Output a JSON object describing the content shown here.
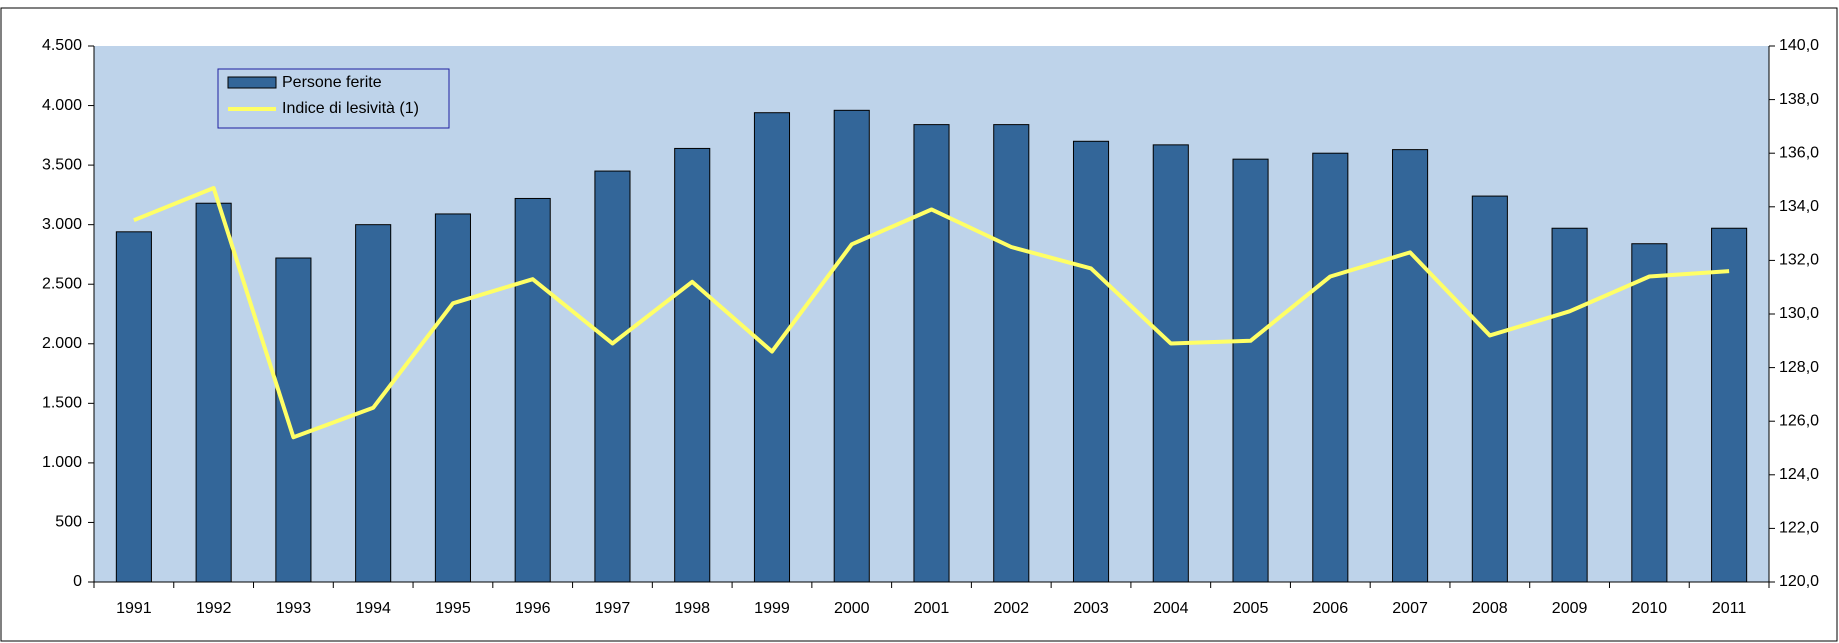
{
  "chart_data": {
    "type": "bar_line",
    "categories": [
      "1991",
      "1992",
      "1993",
      "1994",
      "1995",
      "1996",
      "1997",
      "1998",
      "1999",
      "2000",
      "2001",
      "2002",
      "2003",
      "2004",
      "2005",
      "2006",
      "2007",
      "2008",
      "2009",
      "2010",
      "2011"
    ],
    "series": [
      {
        "name": "Persone ferite",
        "type": "bar",
        "color": "#336699",
        "values": [
          2940,
          3180,
          2720,
          3000,
          3090,
          3220,
          3450,
          3640,
          3940,
          3960,
          3840,
          3840,
          3700,
          3670,
          3550,
          3600,
          3630,
          3240,
          2970,
          2840,
          2970
        ]
      },
      {
        "name": "Indice di lesività (1)",
        "type": "line",
        "axis": "y2",
        "color": "#ffff66",
        "values": [
          133.5,
          134.7,
          125.4,
          126.5,
          130.4,
          131.3,
          128.9,
          131.2,
          128.6,
          132.6,
          133.9,
          132.5,
          131.7,
          128.9,
          129.0,
          131.4,
          132.3,
          129.2,
          130.1,
          131.4,
          131.6
        ]
      }
    ],
    "ylim": [
      0,
      4500
    ],
    "yticks": [
      0,
      500,
      {
        "value": 1000,
        "label": "1.000"
      },
      {
        "value": 1500,
        "label": "1.500"
      },
      {
        "value": 2000,
        "label": "2.000"
      },
      {
        "value": 2500,
        "label": "2.500"
      },
      {
        "value": 3000,
        "label": "3.000"
      },
      {
        "value": 3500,
        "label": "3.500"
      },
      {
        "value": 4000,
        "label": "4.000"
      },
      {
        "value": 4500,
        "label": "4.500"
      }
    ],
    "y2lim": [
      120,
      140
    ],
    "y2ticks": [
      {
        "value": 120,
        "label": "120,0"
      },
      {
        "value": 122,
        "label": "122,0"
      },
      {
        "value": 124,
        "label": "124,0"
      },
      {
        "value": 126,
        "label": "126,0"
      },
      {
        "value": 128,
        "label": "128,0"
      },
      {
        "value": 130,
        "label": "130,0"
      },
      {
        "value": 132,
        "label": "132,0"
      },
      {
        "value": 134,
        "label": "134,0"
      },
      {
        "value": 136,
        "label": "136,0"
      },
      {
        "value": 138,
        "label": "138,0"
      },
      {
        "value": 140,
        "label": "140,0"
      }
    ],
    "plot_background": "#bed3ea",
    "legend": "top-left"
  }
}
